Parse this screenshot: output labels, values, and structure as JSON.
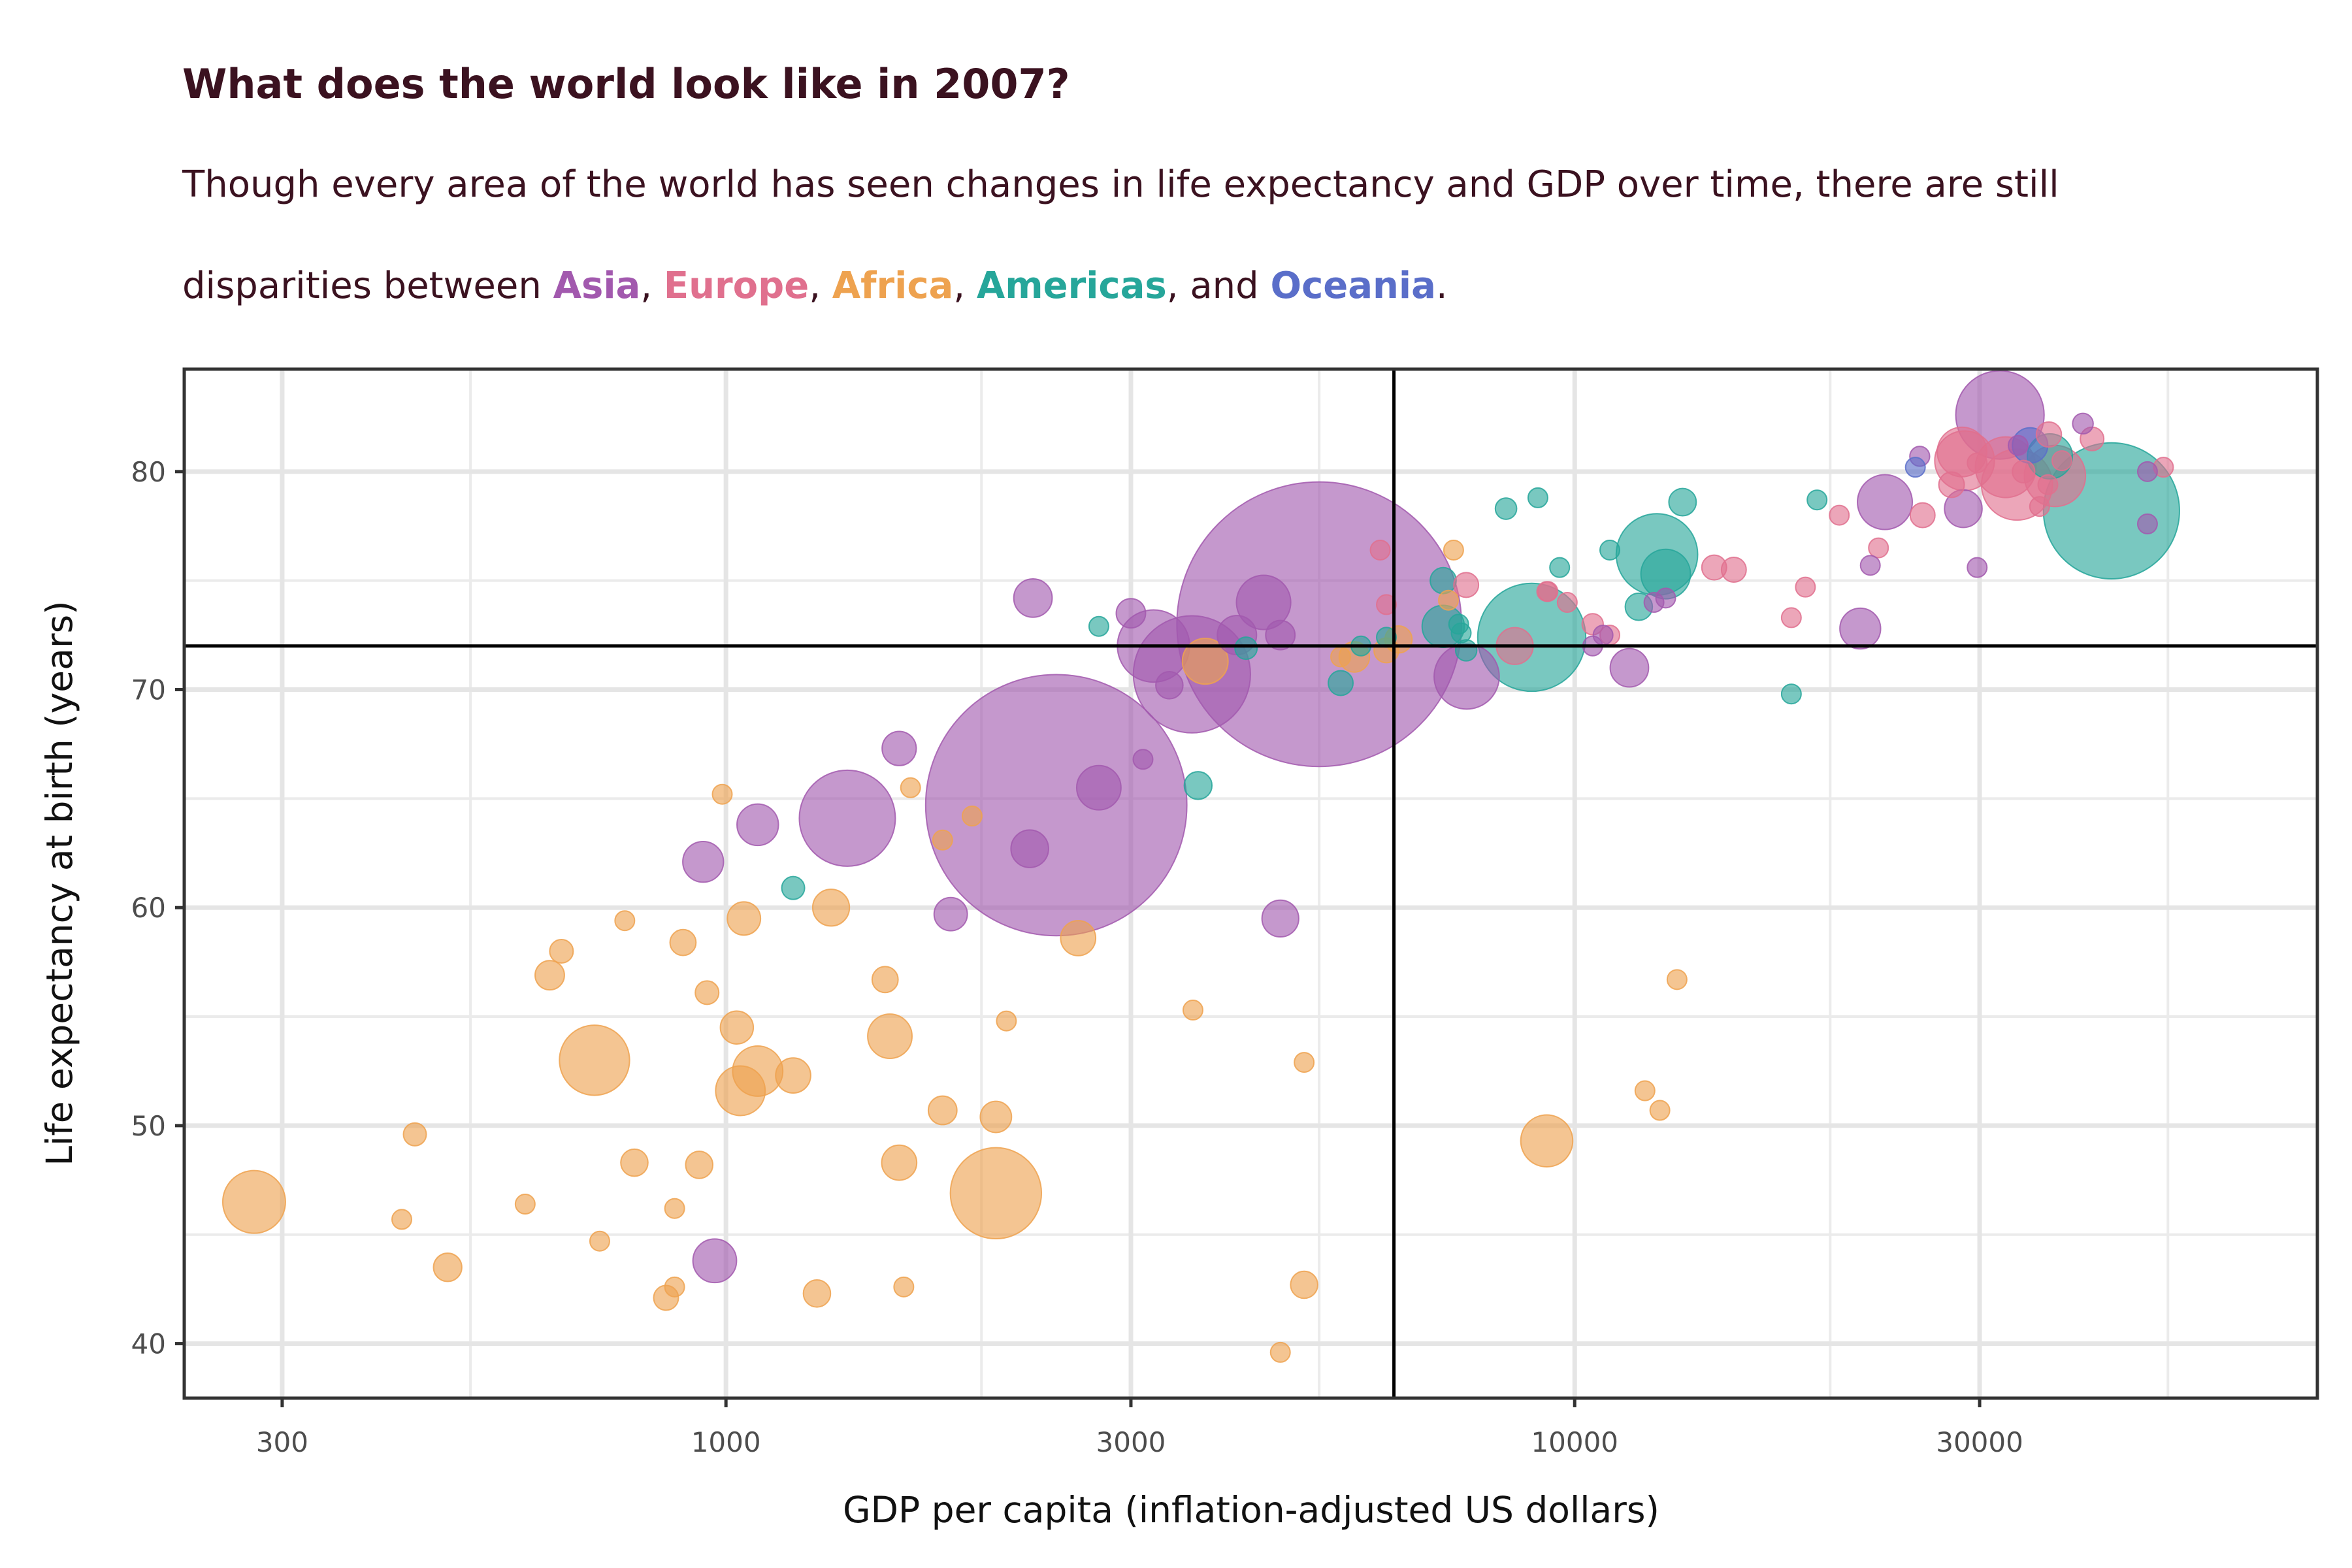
{
  "title": "What does the world look like in 2007?",
  "subtitle_line1": "Though every area of the world has seen changes in life expectancy and GDP over time, there are still",
  "subtitle_prefix": "disparities between ",
  "subtitle_sep1": ", ",
  "subtitle_sep2": ", ",
  "subtitle_sep3": ", ",
  "subtitle_and": ", and ",
  "subtitle_end": ".",
  "colors": {
    "Asia": "#a259ae",
    "Europe": "#e0708e",
    "Africa": "#eea24f",
    "Americas": "#26a69a",
    "Oceania": "#5a6ec9",
    "text": "#3b1220"
  },
  "chart_data": {
    "type": "scatter",
    "title": "What does the world look like in 2007?",
    "xlabel": "GDP per capita (inflation-adjusted US dollars)",
    "ylabel": "Life expectancy at birth (years)",
    "xscale": "log",
    "xlim": [
      230,
      75000
    ],
    "ylim": [
      37.5,
      84.7
    ],
    "xticks": [
      300,
      1000,
      3000,
      10000,
      30000
    ],
    "xtick_labels": [
      "300",
      "1000",
      "3000",
      "10000",
      "30000"
    ],
    "yticks": [
      40,
      50,
      60,
      70,
      80
    ],
    "ytick_labels": [
      "40",
      "50",
      "60",
      "70",
      "80"
    ],
    "reference_lines": {
      "vertical_x": 6124,
      "horizontal_y": 72
    },
    "grid": true,
    "legend": "none",
    "size_variable": "population",
    "series": [
      {
        "name": "Asia",
        "points": [
          [
            5000,
            73,
            1318
          ],
          [
            2450,
            64.7,
            1110
          ],
          [
            2750,
            65.5,
            32
          ],
          [
            3540,
            70.7,
            223
          ],
          [
            4300,
            74,
            48
          ],
          [
            1390,
            64.1,
            150
          ],
          [
            3190,
            72,
            85
          ],
          [
            3330,
            70.2,
            12
          ],
          [
            2280,
            62.7,
            23
          ],
          [
            4000,
            72.5,
            25
          ],
          [
            1090,
            63.8,
            28
          ],
          [
            940,
            62.1,
            27
          ],
          [
            1600,
            67.3,
            19
          ],
          [
            1840,
            59.7,
            18
          ],
          [
            2300,
            74.2,
            24
          ],
          [
            4500,
            72.5,
            14
          ],
          [
            4500,
            59.5,
            22
          ],
          [
            3100,
            66.8,
            3
          ],
          [
            970,
            43.8,
            31
          ],
          [
            3000,
            73.5,
            14
          ],
          [
            7460,
            70.6,
            69
          ],
          [
            11600,
            71,
            24
          ],
          [
            12400,
            74,
            5
          ],
          [
            10500,
            72,
            3
          ],
          [
            12800,
            74.2,
            2.4
          ],
          [
            10800,
            72.5,
            1.5
          ],
          [
            21700,
            72.8,
            27
          ],
          [
            23200,
            78.6,
            49
          ],
          [
            22300,
            75.7,
            0.7
          ],
          [
            25500,
            80.7,
            6.4
          ],
          [
            28700,
            78.3,
            23
          ],
          [
            29800,
            75.6,
            2.5
          ],
          [
            31700,
            82.6,
            127
          ],
          [
            33300,
            81.2,
            3
          ],
          [
            39700,
            82.2,
            6.9
          ],
          [
            47300,
            80,
            4.5
          ],
          [
            47300,
            77.6,
            0.8
          ]
        ]
      },
      {
        "name": "Europe",
        "points": [
          [
            5900,
            76.4,
            3.6
          ],
          [
            6000,
            73.9,
            4.6
          ],
          [
            7450,
            74.8,
            10
          ],
          [
            8500,
            72,
            22
          ],
          [
            9300,
            74.5,
            4
          ],
          [
            9800,
            74,
            4.4
          ],
          [
            9270,
            74.5,
            2
          ],
          [
            10500,
            73,
            7.3
          ],
          [
            11000,
            72.5,
            3
          ],
          [
            14600,
            75.6,
            10
          ],
          [
            15400,
            75.5,
            10
          ],
          [
            18000,
            73.3,
            5.4
          ],
          [
            18700,
            74.7,
            2
          ],
          [
            20500,
            78,
            2
          ],
          [
            22800,
            76.5,
            1.3
          ],
          [
            25700,
            78,
            10
          ],
          [
            27800,
            79.4,
            10.6
          ],
          [
            28600,
            80.9,
            40
          ],
          [
            28800,
            80.5,
            58
          ],
          [
            29800,
            80.4,
            4.1
          ],
          [
            32200,
            80.2,
            60
          ],
          [
            33200,
            79.4,
            82
          ],
          [
            33800,
            80,
            8.2
          ],
          [
            35300,
            78.4,
            0.4
          ],
          [
            36100,
            79.4,
            5.5
          ],
          [
            36200,
            81.7,
            10.3
          ],
          [
            37500,
            80.5,
            4.6
          ],
          [
            36800,
            79.8,
            61
          ],
          [
            40700,
            81.5,
            9
          ],
          [
            49400,
            80.2,
            4.6
          ]
        ]
      },
      {
        "name": "Africa",
        "points": [
          [
            278,
            46.5,
            64
          ],
          [
            415,
            45.7,
            1.5
          ],
          [
            430,
            49.6,
            8.5
          ],
          [
            470,
            43.5,
            13
          ],
          [
            580,
            46.4,
            1.6
          ],
          [
            620,
            56.9,
            14
          ],
          [
            640,
            58,
            9
          ],
          [
            700,
            53,
            80
          ],
          [
            710,
            44.7,
            1.5
          ],
          [
            760,
            59.4,
            5.7
          ],
          [
            780,
            48.3,
            12
          ],
          [
            850,
            42.1,
            10
          ],
          [
            870,
            42.6,
            4.3
          ],
          [
            870,
            46.2,
            6
          ],
          [
            890,
            58.4,
            11
          ],
          [
            930,
            48.2,
            12
          ],
          [
            950,
            56.1,
            9
          ],
          [
            990,
            65.2,
            1.2
          ],
          [
            1030,
            54.5,
            17.7
          ],
          [
            1040,
            51.6,
            40
          ],
          [
            1050,
            59.5,
            18
          ],
          [
            1090,
            52.5,
            41
          ],
          [
            1200,
            52.3,
            20
          ],
          [
            1280,
            42.3,
            12
          ],
          [
            1330,
            60,
            22
          ],
          [
            1540,
            56.7,
            11
          ],
          [
            1560,
            54.1,
            32
          ],
          [
            1600,
            48.3,
            20
          ],
          [
            1620,
            42.6,
            1.1
          ],
          [
            1650,
            65.5,
            0.6
          ],
          [
            1800,
            50.7,
            13.3
          ],
          [
            1800,
            63.1,
            1.2
          ],
          [
            1950,
            64.2,
            1.1
          ],
          [
            2080,
            46.9,
            135
          ],
          [
            2080,
            50.4,
            15.9
          ],
          [
            2140,
            54.8,
            6.2
          ],
          [
            2600,
            58.6,
            20
          ],
          [
            3550,
            55.3,
            1.6
          ],
          [
            3670,
            71.3,
            34
          ],
          [
            4800,
            52.9,
            1.1
          ],
          [
            4800,
            42.7,
            12
          ],
          [
            4500,
            39.6,
            1.9
          ],
          [
            5500,
            71.5,
            15
          ],
          [
            6000,
            71.8,
            10
          ],
          [
            6200,
            72.3,
            12
          ],
          [
            7100,
            74.1,
            3.2
          ],
          [
            7200,
            76.4,
            1.2
          ],
          [
            9270,
            49.3,
            44
          ],
          [
            12100,
            51.6,
            1.4
          ],
          [
            12600,
            50.7,
            1.1
          ],
          [
            13200,
            56.7,
            0.5
          ],
          [
            5300,
            71.5,
            6
          ]
        ]
      },
      {
        "name": "Americas",
        "points": [
          [
            1200,
            60.9,
            8.5
          ],
          [
            2750,
            72.9,
            5.5
          ],
          [
            3600,
            65.6,
            12.5
          ],
          [
            4100,
            71.9,
            8
          ],
          [
            5300,
            70.3,
            10
          ],
          [
            5600,
            72,
            4
          ],
          [
            6000,
            72.4,
            3.4
          ],
          [
            7000,
            75,
            11
          ],
          [
            7300,
            73,
            2
          ],
          [
            7000,
            72.9,
            29
          ],
          [
            7350,
            72.6,
            4
          ],
          [
            7450,
            71.8,
            7.3
          ],
          [
            8900,
            72.4,
            190
          ],
          [
            8300,
            78.3,
            7.4
          ],
          [
            9050,
            78.8,
            4.1
          ],
          [
            9600,
            75.6,
            3.8
          ],
          [
            11000,
            76.4,
            3.2
          ],
          [
            11900,
            73.8,
            12
          ],
          [
            12500,
            76.2,
            108
          ],
          [
            12800,
            75.3,
            40
          ],
          [
            13400,
            78.6,
            12.2
          ],
          [
            18000,
            69.8,
            1.1
          ],
          [
            19300,
            78.7,
            4
          ],
          [
            36300,
            80.7,
            33
          ],
          [
            42900,
            78.2,
            301
          ]
        ]
      },
      {
        "name": "Oceania",
        "points": [
          [
            25200,
            80.2,
            4.1
          ],
          [
            34400,
            81.2,
            20.4
          ]
        ]
      }
    ]
  }
}
